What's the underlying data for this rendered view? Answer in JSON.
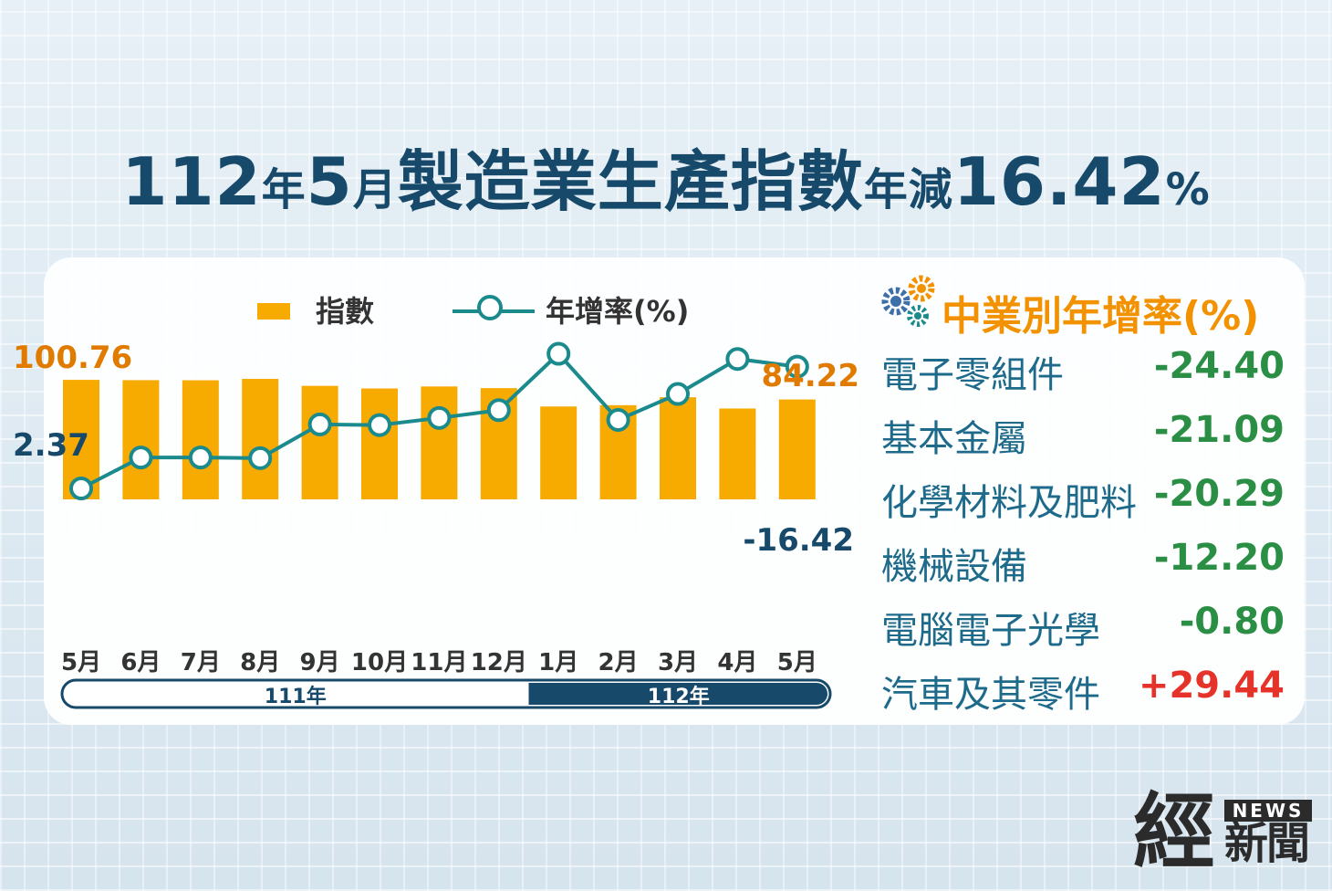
{
  "title": {
    "p1": "112",
    "p2": "年",
    "p3": "5",
    "p4": "月",
    "p5": "製造業生產指數",
    "p6": "年減",
    "p7": "16.42",
    "p8": "%"
  },
  "legend": {
    "bar_label": "指數",
    "line_label": "年增率(%)"
  },
  "colors": {
    "bar": "#f7ab00",
    "line": "#1a8a8d",
    "title": "#17496b",
    "negative": "#2a8f44",
    "positive": "#e5332a",
    "header": "#f39200"
  },
  "chart_data": {
    "type": "bar",
    "categories": [
      "5月",
      "6月",
      "7月",
      "8月",
      "9月",
      "10月",
      "11月",
      "12月",
      "1月",
      "2月",
      "3月",
      "4月",
      "5月"
    ],
    "series": [
      {
        "name": "指數",
        "type": "bar",
        "values": [
          100.76,
          100.5,
          100.4,
          101.6,
          95.7,
          93.5,
          95.2,
          93.8,
          78.3,
          79.4,
          86.1,
          76.6,
          84.22
        ]
      },
      {
        "name": "年增率(%)",
        "type": "line",
        "values": [
          2.37,
          -2.4,
          -2.4,
          -2.3,
          -7.5,
          -7.4,
          -8.5,
          -9.7,
          -18.4,
          -8.2,
          -12.2,
          -17.6,
          -16.42
        ]
      }
    ],
    "data_labels": [
      {
        "series": "指數",
        "index": 0,
        "text": "100.76"
      },
      {
        "series": "指數",
        "index": 12,
        "text": "84.22"
      },
      {
        "series": "年增率(%)",
        "index": 0,
        "text": "2.37"
      },
      {
        "series": "年增率(%)",
        "index": 12,
        "text": "-16.42"
      }
    ],
    "year_groups": [
      {
        "label": "111年",
        "from": 0,
        "to": 7
      },
      {
        "label": "112年",
        "from": 8,
        "to": 12
      }
    ]
  },
  "industry": {
    "header": "中業別年增率(%)",
    "icon": "gears-icon",
    "items": [
      {
        "name": "電子零組件",
        "value": "-24.40"
      },
      {
        "name": "基本金屬",
        "value": "-21.09"
      },
      {
        "name": "化學材料及肥料",
        "value": "-20.29"
      },
      {
        "name": "機械設備",
        "value": "-12.20"
      },
      {
        "name": "電腦電子光學",
        "value": "-0.80"
      },
      {
        "name": "汽車及其零件",
        "value": "+29.44"
      }
    ]
  },
  "logo": {
    "news": "NEWS",
    "jing": "經",
    "xinwen": "新聞"
  }
}
